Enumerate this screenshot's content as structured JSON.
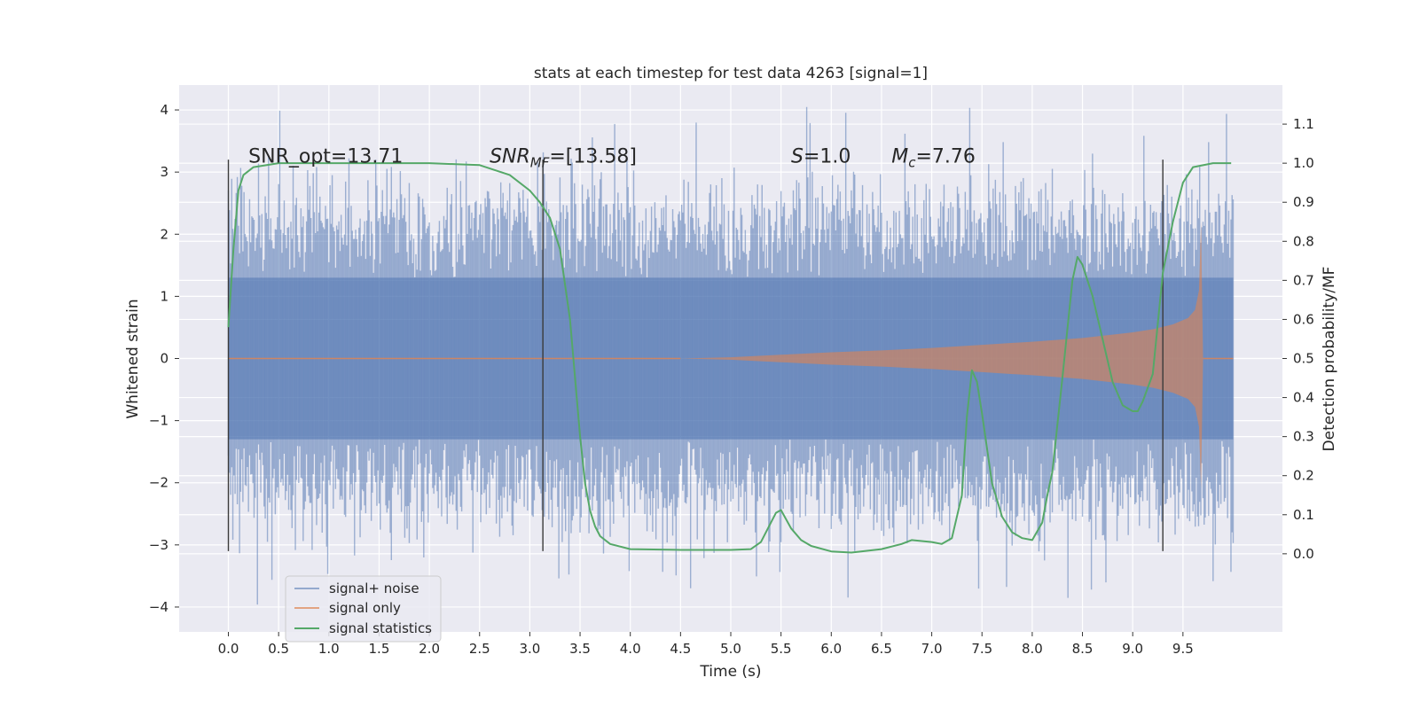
{
  "chart_data": {
    "type": "line",
    "title": "stats at each timestep for test data 4263 [signal=1]",
    "xlabel": "Time (s)",
    "ylabel_left": "Whitened strain",
    "ylabel_right": "Detection probability/MF",
    "xlim": [
      -0.49,
      10.49
    ],
    "ylim_left": [
      -4.4,
      4.4
    ],
    "ylim_right": [
      -0.2,
      1.2
    ],
    "x_ticks": [
      0.0,
      0.5,
      1.0,
      1.5,
      2.0,
      2.5,
      3.0,
      3.5,
      4.0,
      4.5,
      5.0,
      5.5,
      6.0,
      6.5,
      7.0,
      7.5,
      8.0,
      8.5,
      9.0,
      9.5
    ],
    "x_tick_labels": [
      "0.0",
      "0.5",
      "1.0",
      "1.5",
      "2.0",
      "2.5",
      "3.0",
      "3.5",
      "4.0",
      "4.5",
      "5.0",
      "5.5",
      "6.0",
      "6.5",
      "7.0",
      "7.5",
      "8.0",
      "8.5",
      "9.0",
      "9.5"
    ],
    "y_left_ticks": [
      -4,
      -3,
      -2,
      -1,
      0,
      1,
      2,
      3,
      4
    ],
    "y_left_tick_labels": [
      "−4",
      "−3",
      "−2",
      "−1",
      "0",
      "1",
      "2",
      "3",
      "4"
    ],
    "y_right_ticks": [
      0.0,
      0.1,
      0.2,
      0.3,
      0.4,
      0.5,
      0.6,
      0.7,
      0.8,
      0.9,
      1.0,
      1.1
    ],
    "y_right_tick_labels": [
      "0.0",
      "0.1",
      "0.2",
      "0.3",
      "0.4",
      "0.5",
      "0.6",
      "0.7",
      "0.8",
      "0.9",
      "1.0",
      "1.1"
    ],
    "grid": true,
    "legend_position": "lower-left",
    "annotations": [
      {
        "text": "SNR_opt=13.71",
        "x": 0.2,
        "y": 3.15
      },
      {
        "text": "SNR_MF=[13.58]",
        "x": 2.6,
        "y": 3.15
      },
      {
        "text": "S=1.0",
        "x": 5.6,
        "y": 3.15
      },
      {
        "text": "M_c=7.76",
        "x": 6.6,
        "y": 3.15
      }
    ],
    "vertical_lines_x": [
      0.0,
      3.13,
      9.3
    ],
    "vertical_lines_range": [
      -3.1,
      3.2
    ],
    "series": [
      {
        "name": "signal+ noise",
        "color": "#4c72b0",
        "axis": "left",
        "kind": "noise-band",
        "x_range": [
          0.0,
          10.0
        ],
        "core_amplitude": 1.3,
        "typical_peak": 2.6,
        "max_peak": 4.05,
        "min_trough": -4.0
      },
      {
        "name": "signal only",
        "color": "#dd8452",
        "axis": "left",
        "kind": "chirp-envelope",
        "envelope_x": [
          4.5,
          5.0,
          5.5,
          6.0,
          6.5,
          7.0,
          7.5,
          8.0,
          8.5,
          9.0,
          9.2,
          9.4,
          9.55,
          9.62,
          9.66,
          9.68,
          9.7
        ],
        "envelope_y": [
          0.0,
          0.02,
          0.06,
          0.1,
          0.13,
          0.17,
          0.22,
          0.27,
          0.33,
          0.42,
          0.47,
          0.55,
          0.65,
          0.78,
          1.1,
          2.2,
          0.0
        ]
      },
      {
        "name": "signal statistics",
        "color": "#55a868",
        "axis": "right",
        "x": [
          0.0,
          0.05,
          0.1,
          0.15,
          0.25,
          0.5,
          1.0,
          1.5,
          2.0,
          2.5,
          2.8,
          3.0,
          3.1,
          3.2,
          3.3,
          3.4,
          3.45,
          3.5,
          3.55,
          3.6,
          3.65,
          3.7,
          3.8,
          4.0,
          4.5,
          5.0,
          5.2,
          5.3,
          5.4,
          5.45,
          5.5,
          5.6,
          5.7,
          5.8,
          6.0,
          6.2,
          6.5,
          6.7,
          6.8,
          7.0,
          7.1,
          7.2,
          7.3,
          7.35,
          7.4,
          7.45,
          7.5,
          7.6,
          7.7,
          7.8,
          7.9,
          8.0,
          8.1,
          8.15,
          8.2,
          8.3,
          8.4,
          8.45,
          8.5,
          8.6,
          8.7,
          8.8,
          8.9,
          9.0,
          9.05,
          9.1,
          9.2,
          9.3,
          9.4,
          9.5,
          9.6,
          9.8,
          9.98
        ],
        "y": [
          0.58,
          0.78,
          0.93,
          0.97,
          0.99,
          1.0,
          1.0,
          1.0,
          1.0,
          0.995,
          0.97,
          0.93,
          0.9,
          0.86,
          0.78,
          0.6,
          0.45,
          0.3,
          0.18,
          0.11,
          0.07,
          0.045,
          0.025,
          0.012,
          0.01,
          0.01,
          0.012,
          0.03,
          0.08,
          0.105,
          0.112,
          0.065,
          0.035,
          0.02,
          0.006,
          0.003,
          0.012,
          0.025,
          0.035,
          0.03,
          0.025,
          0.04,
          0.15,
          0.35,
          0.47,
          0.44,
          0.36,
          0.18,
          0.095,
          0.055,
          0.04,
          0.035,
          0.08,
          0.15,
          0.21,
          0.45,
          0.7,
          0.76,
          0.74,
          0.66,
          0.55,
          0.44,
          0.38,
          0.365,
          0.365,
          0.39,
          0.46,
          0.72,
          0.85,
          0.95,
          0.99,
          1.0,
          1.0
        ]
      }
    ]
  }
}
